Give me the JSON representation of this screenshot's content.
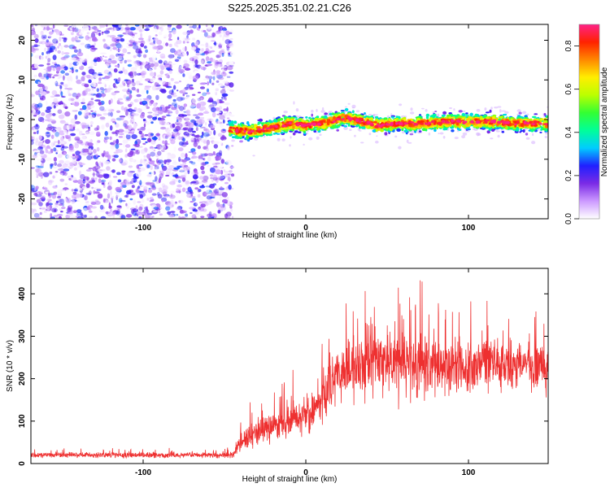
{
  "title": "S225.2025.351.02.21.C26",
  "chart_data": [
    {
      "type": "heatmap",
      "title": "S225.2025.351.02.21.C26",
      "xlabel": "Height of straight line (km)",
      "ylabel": "Frequency (Hz)",
      "xlim": [
        -169,
        149
      ],
      "ylim": [
        -25,
        24
      ],
      "x_ticks": [
        -100,
        0,
        100
      ],
      "x_tick_labels": [
        "-100",
        "0",
        "100"
      ],
      "y_ticks": [
        -20,
        -10,
        0,
        10,
        20
      ],
      "y_tick_labels": [
        "-20",
        "-10",
        "0",
        "10",
        "20"
      ],
      "noise_region_x": [
        -169,
        -47
      ],
      "signal_region_x": [
        -47,
        149
      ],
      "signal_track": {
        "x": [
          -47,
          -35,
          -20,
          -10,
          0,
          10,
          25,
          35,
          45,
          55,
          70,
          85,
          100,
          115,
          130,
          149
        ],
        "y": [
          -2.5,
          -3.0,
          -2.0,
          -1.0,
          -1.5,
          -1.0,
          0.5,
          -0.5,
          -1.5,
          -1.0,
          -1.0,
          -0.5,
          -0.5,
          -0.5,
          -1.0,
          -1.0
        ]
      },
      "colorbar": {
        "label": "Normalized spectral amplitude",
        "range": [
          0.0,
          0.9
        ],
        "ticks": [
          0.0,
          0.2,
          0.4,
          0.6,
          0.8
        ],
        "tick_labels": [
          "0.0",
          "0.2",
          "0.4",
          "0.6",
          "0.8"
        ],
        "colors": [
          "#ffffff",
          "#cc99ff",
          "#7a2be6",
          "#2020ff",
          "#00ccff",
          "#00ff99",
          "#33ff33",
          "#bbff00",
          "#ffee00",
          "#ff8800",
          "#ff2200",
          "#ff2288"
        ]
      }
    },
    {
      "type": "line",
      "xlabel": "Height of straight line (km)",
      "ylabel": "SNR (10 * v/v)",
      "xlim": [
        -169,
        149
      ],
      "ylim": [
        0,
        460
      ],
      "x_ticks": [
        -100,
        0,
        100
      ],
      "x_tick_labels": [
        "-100",
        "0",
        "100"
      ],
      "y_ticks": [
        0,
        100,
        200,
        300,
        400
      ],
      "y_tick_labels": [
        "0",
        "100",
        "200",
        "300",
        "400"
      ],
      "color": "#ee3030",
      "envelope": {
        "x": [
          -169,
          -100,
          -45,
          -40,
          -30,
          -20,
          -10,
          0,
          10,
          20,
          25,
          40,
          55,
          70,
          100,
          149
        ],
        "mean": [
          20,
          20,
          20,
          50,
          75,
          85,
          100,
          120,
          155,
          210,
          225,
          245,
          240,
          225,
          230,
          230
        ],
        "spread": [
          8,
          8,
          8,
          30,
          40,
          45,
          50,
          55,
          70,
          75,
          80,
          95,
          100,
          90,
          75,
          70
        ]
      }
    }
  ]
}
